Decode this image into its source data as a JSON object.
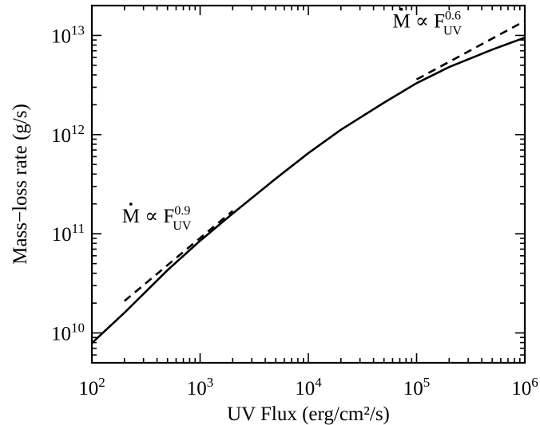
{
  "chart_data": {
    "type": "line",
    "title": "",
    "xlabel": "UV Flux (erg/cm²/s)",
    "ylabel": "Mass−loss rate (g/s)",
    "xscale": "log",
    "yscale": "log",
    "xlim": [
      100,
      1000000
    ],
    "ylim": [
      5000000000,
      20000000000000
    ],
    "grid": false,
    "legend": "none",
    "xticks": [
      {
        "value": 100,
        "base": "10",
        "exp": "2"
      },
      {
        "value": 1000,
        "base": "10",
        "exp": "3"
      },
      {
        "value": 10000,
        "base": "10",
        "exp": "4"
      },
      {
        "value": 100000,
        "base": "10",
        "exp": "5"
      },
      {
        "value": 1000000,
        "base": "10",
        "exp": "6"
      }
    ],
    "yticks": [
      {
        "value": 10000000000,
        "base": "10",
        "exp": "10"
      },
      {
        "value": 100000000000,
        "base": "10",
        "exp": "11"
      },
      {
        "value": 1000000000000,
        "base": "10",
        "exp": "12"
      },
      {
        "value": 10000000000000,
        "base": "10",
        "exp": "13"
      }
    ],
    "series": [
      {
        "style": "solid",
        "x": [
          100,
          200,
          500,
          1000,
          2000,
          5000,
          10000,
          20000,
          50000,
          100000,
          200000,
          500000,
          1000000
        ],
        "y": [
          7900000000,
          16000000000,
          43000000000,
          85000000000,
          160000000000,
          360000000000,
          650000000000,
          1120000000000,
          2100000000000,
          3300000000000,
          4800000000000,
          7200000000000,
          9500000000000
        ]
      },
      {
        "style": "dashed",
        "x": [
          200,
          2000
        ],
        "y": [
          21000000000,
          170000000000
        ]
      },
      {
        "style": "dashed",
        "x": [
          100000,
          1000000
        ],
        "y": [
          3600000000000,
          14000000000000
        ]
      }
    ],
    "annotations": [
      {
        "id": "slope09",
        "lhs": "M",
        "rel": "∝",
        "base": "F",
        "sub": "UV",
        "sup": "0.9",
        "x": 190,
        "y": 130000000000
      },
      {
        "id": "slope06",
        "lhs": "M",
        "rel": "∝",
        "base": "F",
        "sub": "UV",
        "sup": "0.6",
        "x": 60000,
        "y": 12000000000000
      }
    ]
  }
}
